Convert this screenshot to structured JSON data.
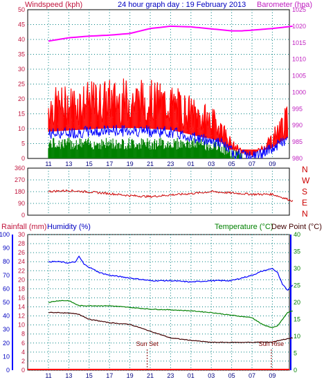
{
  "title": "24 hour graph day : 19 February 2013",
  "colors": {
    "wind": "#ff0000",
    "wind_avg": "#0000ff",
    "wind_calm": "#008000",
    "baro": "#ff00ff",
    "direction": "#cc0000",
    "humidity": "#0000ff",
    "temperature": "#008000",
    "dewpoint": "#400000",
    "rain": "#ff0000",
    "rain_axis": "#0000ff",
    "grid": "#008080"
  },
  "chart_data": [
    {
      "type": "line",
      "title": "24 hour graph day : 19 February 2013",
      "ylabel_left": "Windspeed (kph)",
      "ylabel_right": "Barometer (hpa)",
      "x_ticks": [
        "11",
        "13",
        "15",
        "17",
        "19",
        "21",
        "23",
        "01",
        "03",
        "05",
        "07",
        "09"
      ],
      "ylim_left": [
        0,
        50
      ],
      "ylim_right": [
        980,
        1025
      ],
      "y_ticks_left": [
        "0",
        "5",
        "10",
        "15",
        "20",
        "25",
        "30",
        "35",
        "40",
        "45",
        "50"
      ],
      "y_ticks_right": [
        "980",
        "985",
        "990",
        "995",
        "1000",
        "1005",
        "1010",
        "1015",
        "1020",
        "1025"
      ],
      "grid": true,
      "series": [
        {
          "name": "Barometer (hpa)",
          "axis": "right",
          "hours": [
            0,
            2,
            4,
            6,
            8,
            10,
            12,
            14,
            16,
            18,
            19,
            20,
            22,
            24
          ],
          "values": [
            1015.5,
            1016.5,
            1017,
            1017.3,
            1017.8,
            1019.3,
            1020,
            1019.8,
            1019.2,
            1018.6,
            1018.6,
            1018.8,
            1019.3,
            1020
          ]
        },
        {
          "name": "Windspeed (kph)",
          "axis": "left",
          "hours": [
            0,
            3,
            6,
            9,
            12,
            15,
            16,
            17,
            18,
            19,
            20,
            21,
            22,
            23,
            24
          ],
          "values": [
            15,
            16,
            17,
            17,
            16,
            12,
            11,
            9,
            4,
            2,
            1,
            3,
            6,
            10,
            13
          ]
        }
      ]
    },
    {
      "type": "line",
      "y_ticks": [
        "0",
        "90",
        "180",
        "270",
        "360"
      ],
      "ylim": [
        0,
        360
      ],
      "compass_labels": [
        "N",
        "W",
        "S",
        "E",
        "N"
      ],
      "grid": true,
      "series": [
        {
          "hours": [
            0,
            2,
            4,
            6,
            8,
            10,
            12,
            14,
            16,
            18,
            20,
            22,
            24
          ],
          "values": [
            182,
            188,
            178,
            165,
            150,
            142,
            155,
            165,
            180,
            170,
            160,
            160,
            110
          ]
        }
      ]
    },
    {
      "type": "line",
      "ylabel_rain": "Rainfall (mm)",
      "ylabel_humidity": "Humidity (%)",
      "ylabel_temperature": "Temperature (°C)",
      "ylabel_dewpoint": "Dew Point (°C)",
      "ylim_humidity": [
        0,
        100
      ],
      "ylim_rain": [
        0,
        30
      ],
      "ylim_temperature": [
        0,
        40
      ],
      "y_ticks_humidity": [
        "0",
        "10",
        "20",
        "30",
        "40",
        "50",
        "60",
        "70",
        "80",
        "90",
        "100"
      ],
      "y_ticks_rain": [
        "0",
        "2",
        "4",
        "6",
        "8",
        "10",
        "12",
        "14",
        "16",
        "18",
        "20",
        "22",
        "24",
        "26",
        "28",
        "30"
      ],
      "y_ticks_temperature": [
        "0",
        "5",
        "10",
        "15",
        "20",
        "25",
        "30",
        "35",
        "40"
      ],
      "annotations": [
        {
          "label": "Sun Set",
          "hour": 9.7
        },
        {
          "label": "Sun Rise",
          "hour": 21.9
        }
      ],
      "series": [
        {
          "name": "Humidity (%)",
          "axis": "humidity",
          "hours": [
            0,
            1,
            2,
            2.7,
            3,
            3.5,
            4,
            5,
            6,
            8,
            10,
            12,
            14,
            16,
            18,
            20,
            21,
            22,
            22.5,
            23,
            23.5,
            24
          ],
          "values": [
            80,
            80,
            79,
            80,
            84,
            78,
            76,
            72,
            70,
            68,
            66,
            66,
            65,
            66,
            66,
            70,
            73,
            75,
            72,
            63,
            59,
            63
          ]
        },
        {
          "name": "Temperature (°C)",
          "axis": "temperature",
          "hours": [
            0,
            1,
            2,
            3,
            4,
            6,
            8,
            10,
            12,
            14,
            16,
            18,
            20,
            21,
            22,
            22.5,
            23,
            23.5,
            24
          ],
          "values": [
            20,
            20.5,
            20.5,
            19,
            19,
            19,
            18.5,
            18,
            17.8,
            17.5,
            17,
            16.2,
            15.5,
            13.5,
            12.5,
            13,
            15,
            17,
            17.5
          ]
        },
        {
          "name": "Dew Point (°C)",
          "axis": "temperature",
          "hours": [
            0,
            1,
            2,
            3,
            4,
            6,
            8,
            10,
            12,
            14,
            16,
            18,
            20,
            22,
            23,
            24
          ],
          "values": [
            17,
            17,
            16.8,
            16.5,
            15,
            14,
            13.5,
            11.5,
            9.5,
            8.8,
            8.2,
            8.2,
            8.2,
            8.3,
            9,
            9.5
          ]
        },
        {
          "name": "Rainfall (mm)",
          "axis": "rain",
          "hours": [
            0,
            24
          ],
          "values": [
            0,
            0
          ]
        }
      ]
    }
  ]
}
